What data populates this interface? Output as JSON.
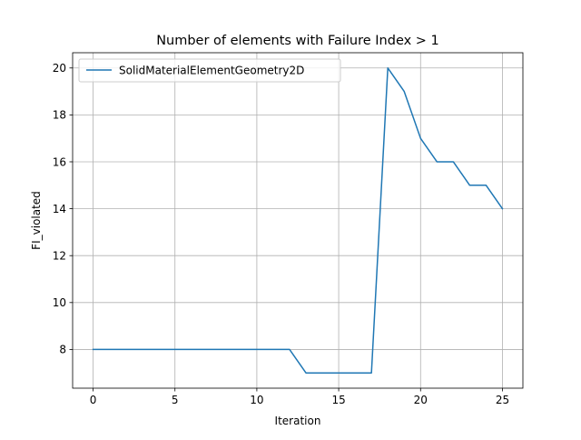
{
  "chart_data": {
    "type": "line",
    "title": "Number of elements with Failure Index > 1",
    "xlabel": "Iteration",
    "ylabel": "FI_violated",
    "xlim": [
      -1.25,
      26.25
    ],
    "ylim": [
      6.35,
      20.65
    ],
    "xticks": [
      0,
      5,
      10,
      15,
      20,
      25
    ],
    "yticks": [
      8,
      10,
      12,
      14,
      16,
      18,
      20
    ],
    "grid": true,
    "legend_position": "upper-left",
    "series": [
      {
        "name": "SolidMaterialElementGeometry2D",
        "color": "#1f77b4",
        "x": [
          0,
          1,
          2,
          3,
          4,
          5,
          6,
          7,
          8,
          9,
          10,
          11,
          12,
          13,
          14,
          15,
          16,
          17,
          18,
          19,
          20,
          21,
          22,
          23,
          24,
          25
        ],
        "y": [
          8,
          8,
          8,
          8,
          8,
          8,
          8,
          8,
          8,
          8,
          8,
          8,
          8,
          7,
          7,
          7,
          7,
          7,
          20,
          19,
          17,
          16,
          16,
          15,
          15,
          14
        ]
      }
    ]
  }
}
